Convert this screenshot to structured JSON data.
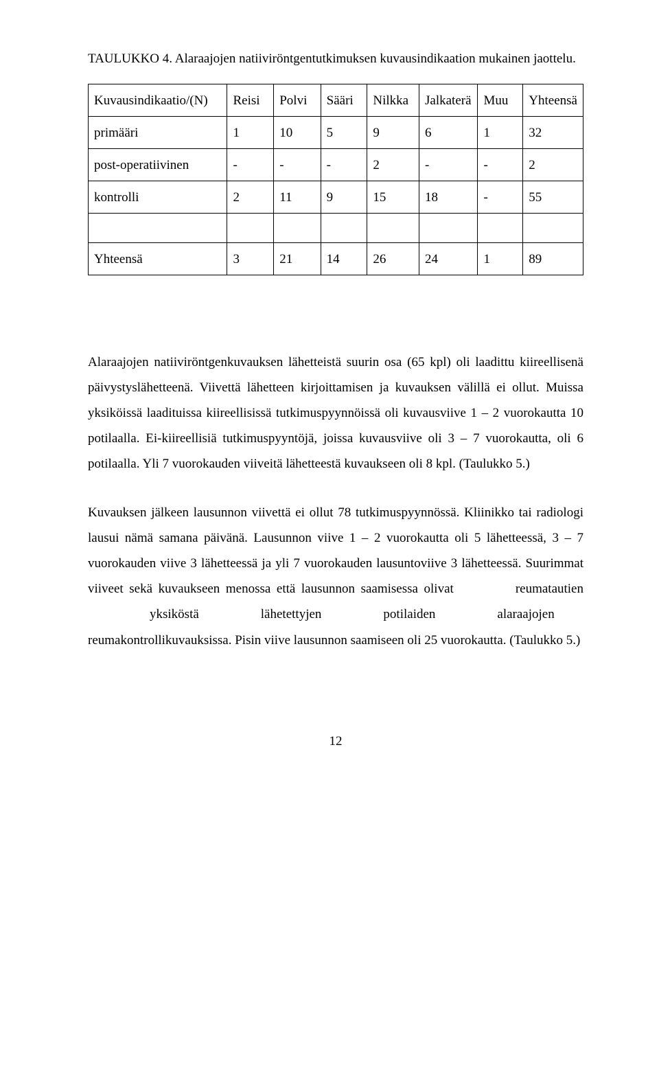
{
  "tableTitle": "TAULUKKO 4. Alaraajojen natiiviröntgentutkimuksen kuvausindikaation mukainen jaottelu.",
  "table": {
    "rowHeader": "Kuvausindikaatio/(N)",
    "columns": [
      "Reisi",
      "Polvi",
      "Sääri",
      "Nilkka",
      "Jalkaterä",
      "Muu",
      "Yhteensä"
    ],
    "rows": [
      {
        "label": "primääri",
        "cells": [
          "1",
          "10",
          "5",
          "9",
          "6",
          "1",
          "32"
        ]
      },
      {
        "label": "post-operatiivinen",
        "cells": [
          "-",
          "-",
          "-",
          "2",
          "-",
          "-",
          "2"
        ]
      },
      {
        "label": "kontrolli",
        "cells": [
          "2",
          "11",
          "9",
          "15",
          "18",
          "-",
          "55"
        ]
      }
    ],
    "totalRow": {
      "label": "Yhteensä",
      "cells": [
        "3",
        "21",
        "14",
        "26",
        "24",
        "1",
        "89"
      ]
    }
  },
  "para1_a": "Alaraajojen natiiviröntgenkuvauksen lähetteistä suurin osa (65 kpl) oli laadittu kiireellisenä päivystyslähetteenä. Viivettä lähetteen kirjoittamisen ja kuvauksen välillä ei ollut. Muissa yksiköissä laadituissa kiireellisissä tutkimuspyynnöissä oli kuvausviive 1 – 2 vuorokautta 10 potilaalla. Ei-kiireellisiä tutkimuspyyntöjä, joissa kuvausviive oli 3 – 7 vuorokautta, oli 6 potilaalla. Yli 7 vuorokauden viiveitä lähetteestä kuvaukseen oli 8 kpl. (Taulukko 5.)",
  "para2_pre": "Kuvauksen jälkeen lausunnon viivettä ei ollut 78 tutkimuspyynnössä. Kliinikko tai radiologi lausui nämä samana päivänä. Lausunnon viive 1 – 2 vuorokautta oli 5 lähetteessä, 3 – 7 vuorokauden viive 3 lähetteessä ja yli 7 vuorokauden lausuntoviive 3 lähetteessä. Suurimmat viiveet sekä kuvaukseen menossa että lausunnon saamisessa ",
  "para2_w1": "olivat",
  "para2_w2": "reumatautien",
  "para2_w3": "yksiköstä",
  "para2_w4": "lähetettyjen",
  "para2_w5": "potilaiden",
  "para2_w6": "alaraajojen",
  "para2_post": " reumakontrollikuvauksissa. Pisin viive lausunnon saamiseen oli 25 vuorokautta. (Taulukko 5.)",
  "pageNumber": "12"
}
